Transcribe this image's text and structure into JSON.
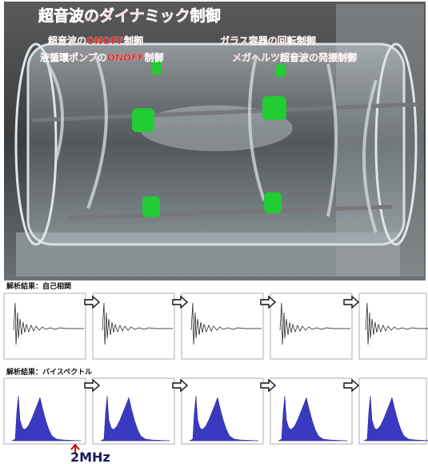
{
  "photo": {
    "title": "超音波のダイナミック制御",
    "captions": [
      "超音波のONOFF制御",
      "ガラス容器の回転制御",
      "液循環ポンプのONOFF制御",
      "メガヘルツ超音波の発振制御"
    ]
  },
  "analysis": {
    "autocorrelation_label": "解析結果：自己相関",
    "bispectrum_label": "解析結果：バイスペクトル",
    "frequency_marker": "2MHz"
  }
}
